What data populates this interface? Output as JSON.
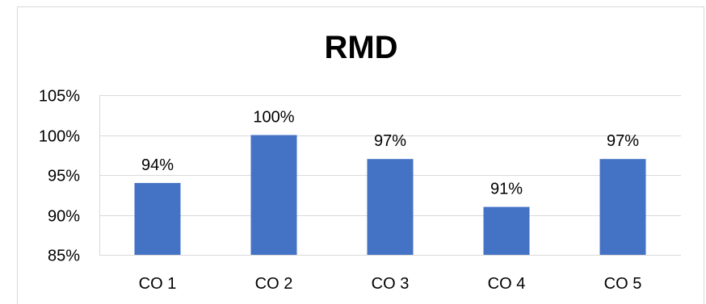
{
  "chart_data": {
    "type": "bar",
    "title": "RMD",
    "xlabel": "",
    "ylabel": "",
    "categories": [
      "CO 1",
      "CO 2",
      "CO 3",
      "CO 4",
      "CO 5"
    ],
    "values": [
      94,
      100,
      97,
      91,
      97
    ],
    "data_labels": [
      "94%",
      "100%",
      "97%",
      "91%",
      "97%"
    ],
    "ylim": [
      85,
      105
    ],
    "yticks": [
      85,
      90,
      95,
      100,
      105
    ],
    "ytick_labels": [
      "85%",
      "90%",
      "95%",
      "100%",
      "105%"
    ],
    "grid": true,
    "legend": "none",
    "colors": {
      "bar": "#4472c4",
      "grid": "#d9d9d9",
      "frame": "#d9d9d9"
    }
  }
}
